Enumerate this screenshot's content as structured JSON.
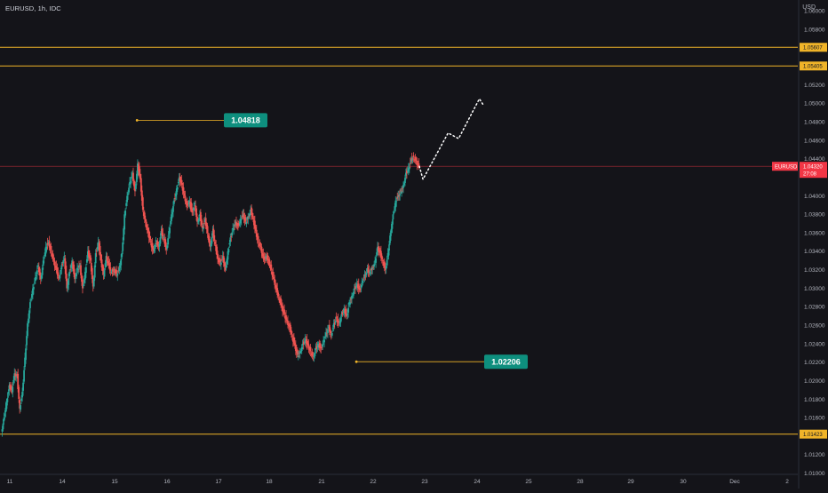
{
  "header": {
    "symbol_line": "EURUSD, 1h, IDC",
    "currency": "USD"
  },
  "colors": {
    "background": "#141419",
    "up": "#26a69a",
    "down": "#ef5350",
    "level": "#f0b429",
    "callout": "#0e8f7e",
    "current_price_line": "#f23645",
    "axis_text": "#b2b5be"
  },
  "chart_data": {
    "type": "candlestick",
    "symbol": "EURUSD",
    "interval": "1h",
    "source": "IDC",
    "y_axis": {
      "unit": "USD",
      "range": [
        1.01,
        1.061
      ],
      "ticks": [
        "1.06000",
        "1.05800",
        "1.05200",
        "1.05000",
        "1.04800",
        "1.04600",
        "1.04400",
        "1.04000",
        "1.03800",
        "1.03600",
        "1.03400",
        "1.03200",
        "1.03000",
        "1.02800",
        "1.02600",
        "1.02400",
        "1.02200",
        "1.02000",
        "1.01800",
        "1.01600",
        "1.01200",
        "1.01000"
      ]
    },
    "x_axis": {
      "ticks": [
        {
          "label": "11",
          "x": 0
        },
        {
          "label": "14",
          "x": 1
        },
        {
          "label": "15",
          "x": 2
        },
        {
          "label": "16",
          "x": 3
        },
        {
          "label": "17",
          "x": 4
        },
        {
          "label": "18",
          "x": 5
        },
        {
          "label": "21",
          "x": 6
        },
        {
          "label": "22",
          "x": 7
        },
        {
          "label": "23",
          "x": 8
        },
        {
          "label": "24",
          "x": 9
        },
        {
          "label": "25",
          "x": 10
        },
        {
          "label": "28",
          "x": 11
        },
        {
          "label": "29",
          "x": 12
        },
        {
          "label": "30",
          "x": 13
        },
        {
          "label": "Dec",
          "x": 14
        },
        {
          "label": "2",
          "x": 15
        }
      ]
    },
    "horizontal_levels": [
      {
        "price": 1.05607,
        "label": "1.05607"
      },
      {
        "price": 1.05405,
        "label": "1.05405"
      },
      {
        "price": 1.01423,
        "label": "1.01423"
      }
    ],
    "current_price": {
      "symbol": "EURUSD",
      "price": 1.0432,
      "label": "1.04320",
      "countdown": "27:08"
    },
    "callouts": [
      {
        "label": "1.04818",
        "price": 1.04818,
        "x": 2.58
      },
      {
        "label": "1.02206",
        "price": 1.02206,
        "x": 6.83
      }
    ],
    "close_path": [
      [
        0.0,
        1.0145
      ],
      [
        0.05,
        1.016
      ],
      [
        0.1,
        1.0178
      ],
      [
        0.15,
        1.0195
      ],
      [
        0.2,
        1.019
      ],
      [
        0.25,
        1.0208
      ],
      [
        0.3,
        1.0205
      ],
      [
        0.35,
        1.017
      ],
      [
        0.4,
        1.0188
      ],
      [
        0.45,
        1.0225
      ],
      [
        0.5,
        1.0262
      ],
      [
        0.55,
        1.0285
      ],
      [
        0.6,
        1.03
      ],
      [
        0.65,
        1.0312
      ],
      [
        0.7,
        1.0325
      ],
      [
        0.75,
        1.031
      ],
      [
        0.8,
        1.033
      ],
      [
        0.85,
        1.0345
      ],
      [
        0.9,
        1.035
      ],
      [
        0.95,
        1.034
      ],
      [
        1.0,
        1.033
      ],
      [
        1.05,
        1.032
      ],
      [
        1.1,
        1.0312
      ],
      [
        1.15,
        1.0325
      ],
      [
        1.2,
        1.0335
      ],
      [
        1.25,
        1.03
      ],
      [
        1.3,
        1.0318
      ],
      [
        1.35,
        1.033
      ],
      [
        1.4,
        1.031
      ],
      [
        1.45,
        1.0322
      ],
      [
        1.5,
        1.0325
      ],
      [
        1.55,
        1.03
      ],
      [
        1.6,
        1.0318
      ],
      [
        1.65,
        1.034
      ],
      [
        1.7,
        1.033
      ],
      [
        1.75,
        1.0302
      ],
      [
        1.8,
        1.0338
      ],
      [
        1.85,
        1.035
      ],
      [
        1.9,
        1.033
      ],
      [
        1.95,
        1.0315
      ],
      [
        2.0,
        1.0335
      ],
      [
        2.05,
        1.0325
      ],
      [
        2.1,
        1.0318
      ],
      [
        2.15,
        1.032
      ],
      [
        2.2,
        1.0316
      ],
      [
        2.25,
        1.0322
      ],
      [
        2.3,
        1.0338
      ],
      [
        2.35,
        1.038
      ],
      [
        2.4,
        1.04
      ],
      [
        2.45,
        1.0415
      ],
      [
        2.5,
        1.0425
      ],
      [
        2.55,
        1.0405
      ],
      [
        2.6,
        1.0435
      ],
      [
        2.65,
        1.0418
      ],
      [
        2.7,
        1.0385
      ],
      [
        2.75,
        1.0372
      ],
      [
        2.8,
        1.036
      ],
      [
        2.85,
        1.035
      ],
      [
        2.9,
        1.034
      ],
      [
        2.95,
        1.0352
      ],
      [
        3.0,
        1.0345
      ],
      [
        3.05,
        1.0362
      ],
      [
        3.1,
        1.0355
      ],
      [
        3.15,
        1.0342
      ],
      [
        3.2,
        1.0362
      ],
      [
        3.25,
        1.038
      ],
      [
        3.3,
        1.0395
      ],
      [
        3.35,
        1.0408
      ],
      [
        3.4,
        1.042
      ],
      [
        3.45,
        1.0412
      ],
      [
        3.5,
        1.04
      ],
      [
        3.55,
        1.039
      ],
      [
        3.6,
        1.0395
      ],
      [
        3.65,
        1.0382
      ],
      [
        3.7,
        1.0392
      ],
      [
        3.75,
        1.0372
      ],
      [
        3.8,
        1.038
      ],
      [
        3.85,
        1.0365
      ],
      [
        3.9,
        1.0375
      ],
      [
        3.95,
        1.036
      ],
      [
        4.0,
        1.0345
      ],
      [
        4.05,
        1.0362
      ],
      [
        4.1,
        1.0348
      ],
      [
        4.15,
        1.0332
      ],
      [
        4.2,
        1.0328
      ],
      [
        4.25,
        1.0335
      ],
      [
        4.3,
        1.032
      ],
      [
        4.35,
        1.034
      ],
      [
        4.4,
        1.0355
      ],
      [
        4.45,
        1.0365
      ],
      [
        4.5,
        1.0372
      ],
      [
        4.55,
        1.0368
      ],
      [
        4.6,
        1.0375
      ],
      [
        4.65,
        1.038
      ],
      [
        4.7,
        1.0372
      ],
      [
        4.75,
        1.0378
      ],
      [
        4.8,
        1.0385
      ],
      [
        4.85,
        1.0375
      ],
      [
        4.9,
        1.0362
      ],
      [
        4.95,
        1.035
      ],
      [
        5.0,
        1.0345
      ],
      [
        5.05,
        1.0332
      ],
      [
        5.1,
        1.0335
      ],
      [
        5.15,
        1.033
      ],
      [
        5.2,
        1.032
      ],
      [
        5.25,
        1.031
      ],
      [
        5.3,
        1.0298
      ],
      [
        5.35,
        1.029
      ],
      [
        5.4,
        1.028
      ],
      [
        5.45,
        1.0272
      ],
      [
        5.5,
        1.0265
      ],
      [
        5.55,
        1.0258
      ],
      [
        5.6,
        1.0248
      ],
      [
        5.65,
        1.0238
      ],
      [
        5.7,
        1.0228
      ],
      [
        5.75,
        1.0232
      ],
      [
        5.8,
        1.024
      ],
      [
        5.85,
        1.0245
      ],
      [
        5.9,
        1.0238
      ],
      [
        5.95,
        1.0232
      ],
      [
        6.0,
        1.0226
      ],
      [
        6.05,
        1.0235
      ],
      [
        6.1,
        1.024
      ],
      [
        6.15,
        1.0235
      ],
      [
        6.2,
        1.0244
      ],
      [
        6.25,
        1.0252
      ],
      [
        6.3,
        1.0258
      ],
      [
        6.35,
        1.025
      ],
      [
        6.4,
        1.0262
      ],
      [
        6.45,
        1.0268
      ],
      [
        6.5,
        1.0262
      ],
      [
        6.55,
        1.0272
      ],
      [
        6.6,
        1.0278
      ],
      [
        6.65,
        1.027
      ],
      [
        6.7,
        1.0285
      ],
      [
        6.75,
        1.0292
      ],
      [
        6.8,
        1.03
      ],
      [
        6.85,
        1.0305
      ],
      [
        6.9,
        1.0298
      ],
      [
        6.95,
        1.0308
      ],
      [
        7.0,
        1.0315
      ],
      [
        7.05,
        1.032
      ],
      [
        7.1,
        1.0318
      ],
      [
        7.15,
        1.0322
      ],
      [
        7.2,
        1.033
      ],
      [
        7.25,
        1.0345
      ],
      [
        7.3,
        1.0338
      ],
      [
        7.35,
        1.033
      ],
      [
        7.4,
        1.032
      ],
      [
        7.45,
        1.0338
      ],
      [
        7.5,
        1.036
      ],
      [
        7.55,
        1.038
      ],
      [
        7.6,
        1.0395
      ],
      [
        7.65,
        1.04
      ],
      [
        7.7,
        1.0405
      ],
      [
        7.75,
        1.0412
      ],
      [
        7.8,
        1.0425
      ],
      [
        7.85,
        1.043
      ],
      [
        7.9,
        1.044
      ],
      [
        7.95,
        1.0442
      ],
      [
        8.0,
        1.0438
      ],
      [
        8.05,
        1.0432
      ]
    ],
    "projection": [
      [
        8.05,
        1.0432
      ],
      [
        8.12,
        1.0418
      ],
      [
        8.6,
        1.0468
      ],
      [
        8.8,
        1.0462
      ],
      [
        9.2,
        1.0505
      ],
      [
        9.28,
        1.0498
      ]
    ]
  }
}
